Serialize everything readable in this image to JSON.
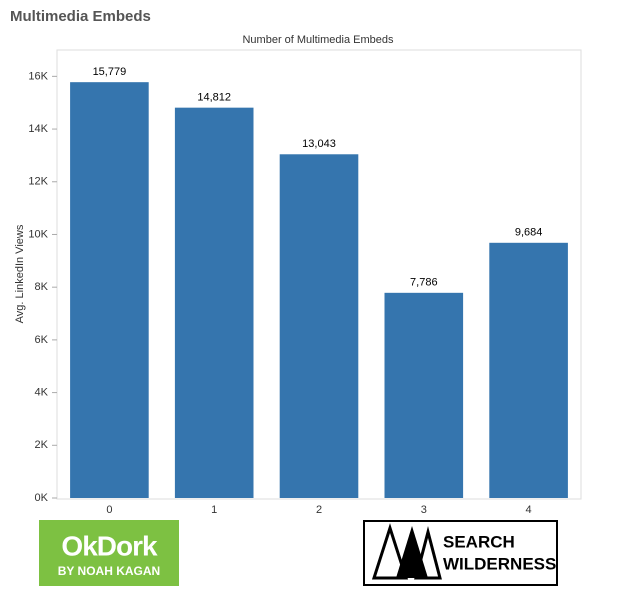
{
  "page_title": "Multimedia Embeds",
  "chart_data": {
    "type": "bar",
    "title": "Number of Multimedia Embeds",
    "y_label": "Avg. LinkedIn Views",
    "categories": [
      "0",
      "1",
      "2",
      "3",
      "4"
    ],
    "values": [
      15779,
      14812,
      13043,
      7786,
      9684
    ],
    "value_labels": [
      "15,779",
      "14,812",
      "13,043",
      "7,786",
      "9,684"
    ],
    "color": "#3575ae",
    "ylim": [
      0,
      17000
    ],
    "yticks": [
      {
        "value": 0,
        "label": "0K"
      },
      {
        "value": 2000,
        "label": "2K"
      },
      {
        "value": 4000,
        "label": "4K"
      },
      {
        "value": 6000,
        "label": "6K"
      },
      {
        "value": 8000,
        "label": "8K"
      },
      {
        "value": 10000,
        "label": "10K"
      },
      {
        "value": 12000,
        "label": "12K"
      },
      {
        "value": 14000,
        "label": "14K"
      },
      {
        "value": 16000,
        "label": "16K"
      }
    ],
    "grid": false
  },
  "logos": {
    "okdork": {
      "name": "OkDork",
      "tagline": "BY NOAH KAGAN"
    },
    "search_wilderness": {
      "line1": "SEARCH",
      "line2": "WILDERNESS"
    }
  }
}
